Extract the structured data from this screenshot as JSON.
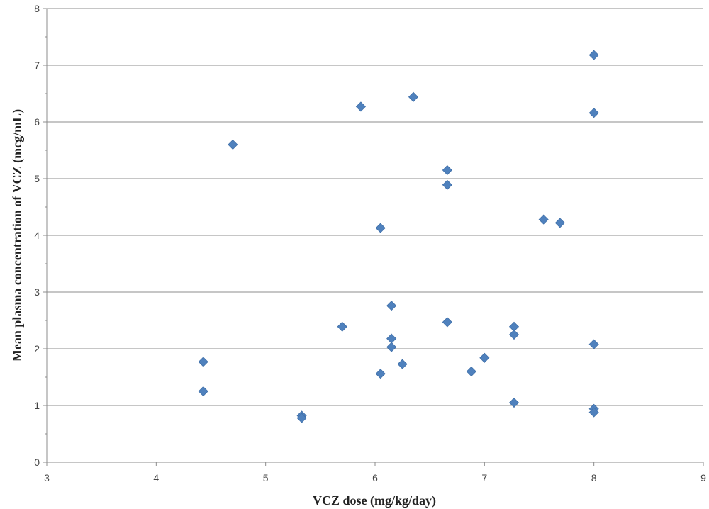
{
  "chart_data": {
    "type": "scatter",
    "title": "",
    "xlabel": "VCZ dose (mg/kg/day)",
    "ylabel": "Mean plasma concentration of VCZ (mcg/mL)",
    "xlim": [
      3,
      9
    ],
    "ylim": [
      0,
      8
    ],
    "x_ticks": [
      3,
      4,
      5,
      6,
      7,
      8,
      9
    ],
    "y_ticks": [
      0,
      1,
      2,
      3,
      4,
      5,
      6,
      7,
      8
    ],
    "grid": "horizontal",
    "legend": "none",
    "marker": "diamond",
    "marker_color": "#4f81bd",
    "series": [
      {
        "points": [
          {
            "x": 4.43,
            "y": 1.77
          },
          {
            "x": 4.43,
            "y": 1.25
          },
          {
            "x": 4.7,
            "y": 5.6
          },
          {
            "x": 5.33,
            "y": 0.82
          },
          {
            "x": 5.33,
            "y": 0.78
          },
          {
            "x": 5.7,
            "y": 2.39
          },
          {
            "x": 5.87,
            "y": 6.27
          },
          {
            "x": 6.05,
            "y": 4.13
          },
          {
            "x": 6.05,
            "y": 1.56
          },
          {
            "x": 6.15,
            "y": 2.76
          },
          {
            "x": 6.15,
            "y": 2.18
          },
          {
            "x": 6.15,
            "y": 2.03
          },
          {
            "x": 6.25,
            "y": 1.73
          },
          {
            "x": 6.35,
            "y": 6.44
          },
          {
            "x": 6.66,
            "y": 5.15
          },
          {
            "x": 6.66,
            "y": 4.89
          },
          {
            "x": 6.66,
            "y": 2.47
          },
          {
            "x": 6.88,
            "y": 1.6
          },
          {
            "x": 7.0,
            "y": 1.84
          },
          {
            "x": 7.27,
            "y": 2.39
          },
          {
            "x": 7.27,
            "y": 2.25
          },
          {
            "x": 7.27,
            "y": 1.05
          },
          {
            "x": 7.54,
            "y": 4.28
          },
          {
            "x": 7.69,
            "y": 4.22
          },
          {
            "x": 8.0,
            "y": 7.18
          },
          {
            "x": 8.0,
            "y": 6.16
          },
          {
            "x": 8.0,
            "y": 2.08
          },
          {
            "x": 8.0,
            "y": 0.94
          },
          {
            "x": 8.0,
            "y": 0.88
          }
        ]
      }
    ]
  }
}
